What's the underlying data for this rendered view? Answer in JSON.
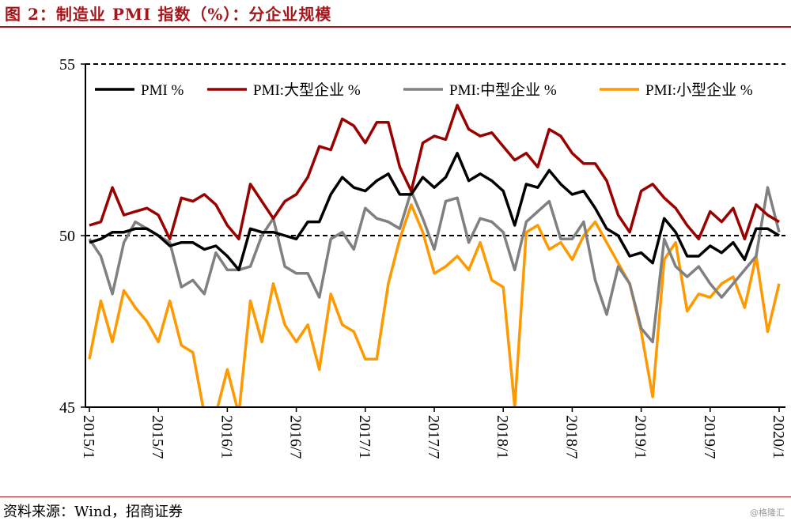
{
  "title": "图 2：制造业 PMI 指数（%）：分企业规模",
  "source": "资料来源：Wind，招商证券",
  "watermark": "@格隆汇",
  "chart_data": {
    "type": "line",
    "title": "图 2：制造业 PMI 指数（%）：分企业规模",
    "xlabel": "",
    "ylabel": "",
    "ylim": [
      45,
      55
    ],
    "yticks": [
      "45",
      "50",
      "55"
    ],
    "reference_lines": [
      50,
      55
    ],
    "legend_position": "top",
    "x_tick_labels": [
      "2015/1",
      "2015/7",
      "2016/1",
      "2016/7",
      "2017/1",
      "2017/7",
      "2018/1",
      "2018/7",
      "2019/1",
      "2019/7",
      "2020/1"
    ],
    "x_start": "2015/1",
    "x_end": "2020/1",
    "series": [
      {
        "name": "PMI %",
        "color": "#000000",
        "values": [
          49.8,
          49.9,
          50.1,
          50.1,
          50.2,
          50.2,
          50.0,
          49.7,
          49.8,
          49.8,
          49.6,
          49.7,
          49.4,
          49.0,
          50.2,
          50.1,
          50.1,
          50.0,
          49.9,
          50.4,
          50.4,
          51.2,
          51.7,
          51.4,
          51.3,
          51.6,
          51.8,
          51.2,
          51.2,
          51.7,
          51.4,
          51.7,
          52.4,
          51.6,
          51.8,
          51.6,
          51.3,
          50.3,
          51.5,
          51.4,
          51.9,
          51.5,
          51.2,
          51.3,
          50.8,
          50.2,
          50.0,
          49.4,
          49.5,
          49.2,
          50.5,
          50.1,
          49.4,
          49.4,
          49.7,
          49.5,
          49.8,
          49.3,
          50.2,
          50.2,
          50.0
        ]
      },
      {
        "name": "PMI:大型企业 %",
        "color": "#990000",
        "values": [
          50.3,
          50.4,
          51.4,
          50.6,
          50.7,
          50.8,
          50.6,
          49.9,
          51.1,
          51.0,
          51.2,
          50.9,
          50.3,
          49.9,
          51.5,
          51.0,
          50.5,
          51.0,
          51.2,
          51.7,
          52.6,
          52.5,
          53.4,
          53.2,
          52.7,
          53.3,
          53.3,
          52.0,
          51.3,
          52.7,
          52.9,
          52.8,
          53.8,
          53.1,
          52.9,
          53.0,
          52.6,
          52.2,
          52.4,
          52.0,
          53.1,
          52.9,
          52.4,
          52.1,
          52.1,
          51.6,
          50.6,
          50.1,
          51.3,
          51.5,
          51.1,
          50.8,
          50.3,
          49.9,
          50.7,
          50.4,
          50.8,
          49.9,
          50.9,
          50.6,
          50.4
        ]
      },
      {
        "name": "PMI:中型企业 %",
        "color": "#808080",
        "values": [
          49.9,
          49.4,
          48.3,
          49.8,
          50.4,
          50.2,
          50.0,
          49.8,
          48.5,
          48.7,
          48.3,
          49.5,
          49.0,
          49.0,
          49.1,
          50.0,
          50.5,
          49.1,
          48.9,
          48.9,
          48.2,
          49.9,
          50.1,
          49.6,
          50.8,
          50.5,
          50.4,
          50.2,
          51.3,
          50.5,
          49.6,
          51.0,
          51.1,
          49.8,
          50.5,
          50.4,
          50.1,
          49.0,
          50.4,
          50.7,
          51.0,
          49.9,
          49.9,
          50.4,
          48.7,
          47.7,
          49.1,
          48.6,
          47.3,
          46.9,
          49.9,
          49.1,
          48.8,
          49.1,
          48.6,
          48.2,
          48.6,
          49.0,
          49.4,
          51.4,
          50.1
        ]
      },
      {
        "name": "PMI:小型企业 %",
        "color": "#ff9900",
        "values": [
          46.4,
          48.1,
          46.9,
          48.4,
          47.9,
          47.5,
          46.9,
          48.1,
          46.8,
          46.6,
          44.8,
          44.8,
          46.1,
          44.8,
          48.1,
          46.9,
          48.6,
          47.4,
          46.9,
          47.4,
          46.1,
          48.3,
          47.4,
          47.2,
          46.4,
          46.4,
          48.6,
          49.9,
          50.9,
          50.1,
          48.9,
          49.1,
          49.4,
          49.0,
          49.8,
          48.7,
          48.5,
          45.0,
          50.1,
          50.3,
          49.6,
          49.8,
          49.3,
          50.0,
          50.4,
          49.8,
          49.2,
          48.6,
          47.2,
          45.3,
          49.3,
          49.8,
          47.8,
          48.3,
          48.2,
          48.6,
          48.8,
          47.9,
          49.4,
          47.2,
          48.6
        ]
      }
    ]
  }
}
